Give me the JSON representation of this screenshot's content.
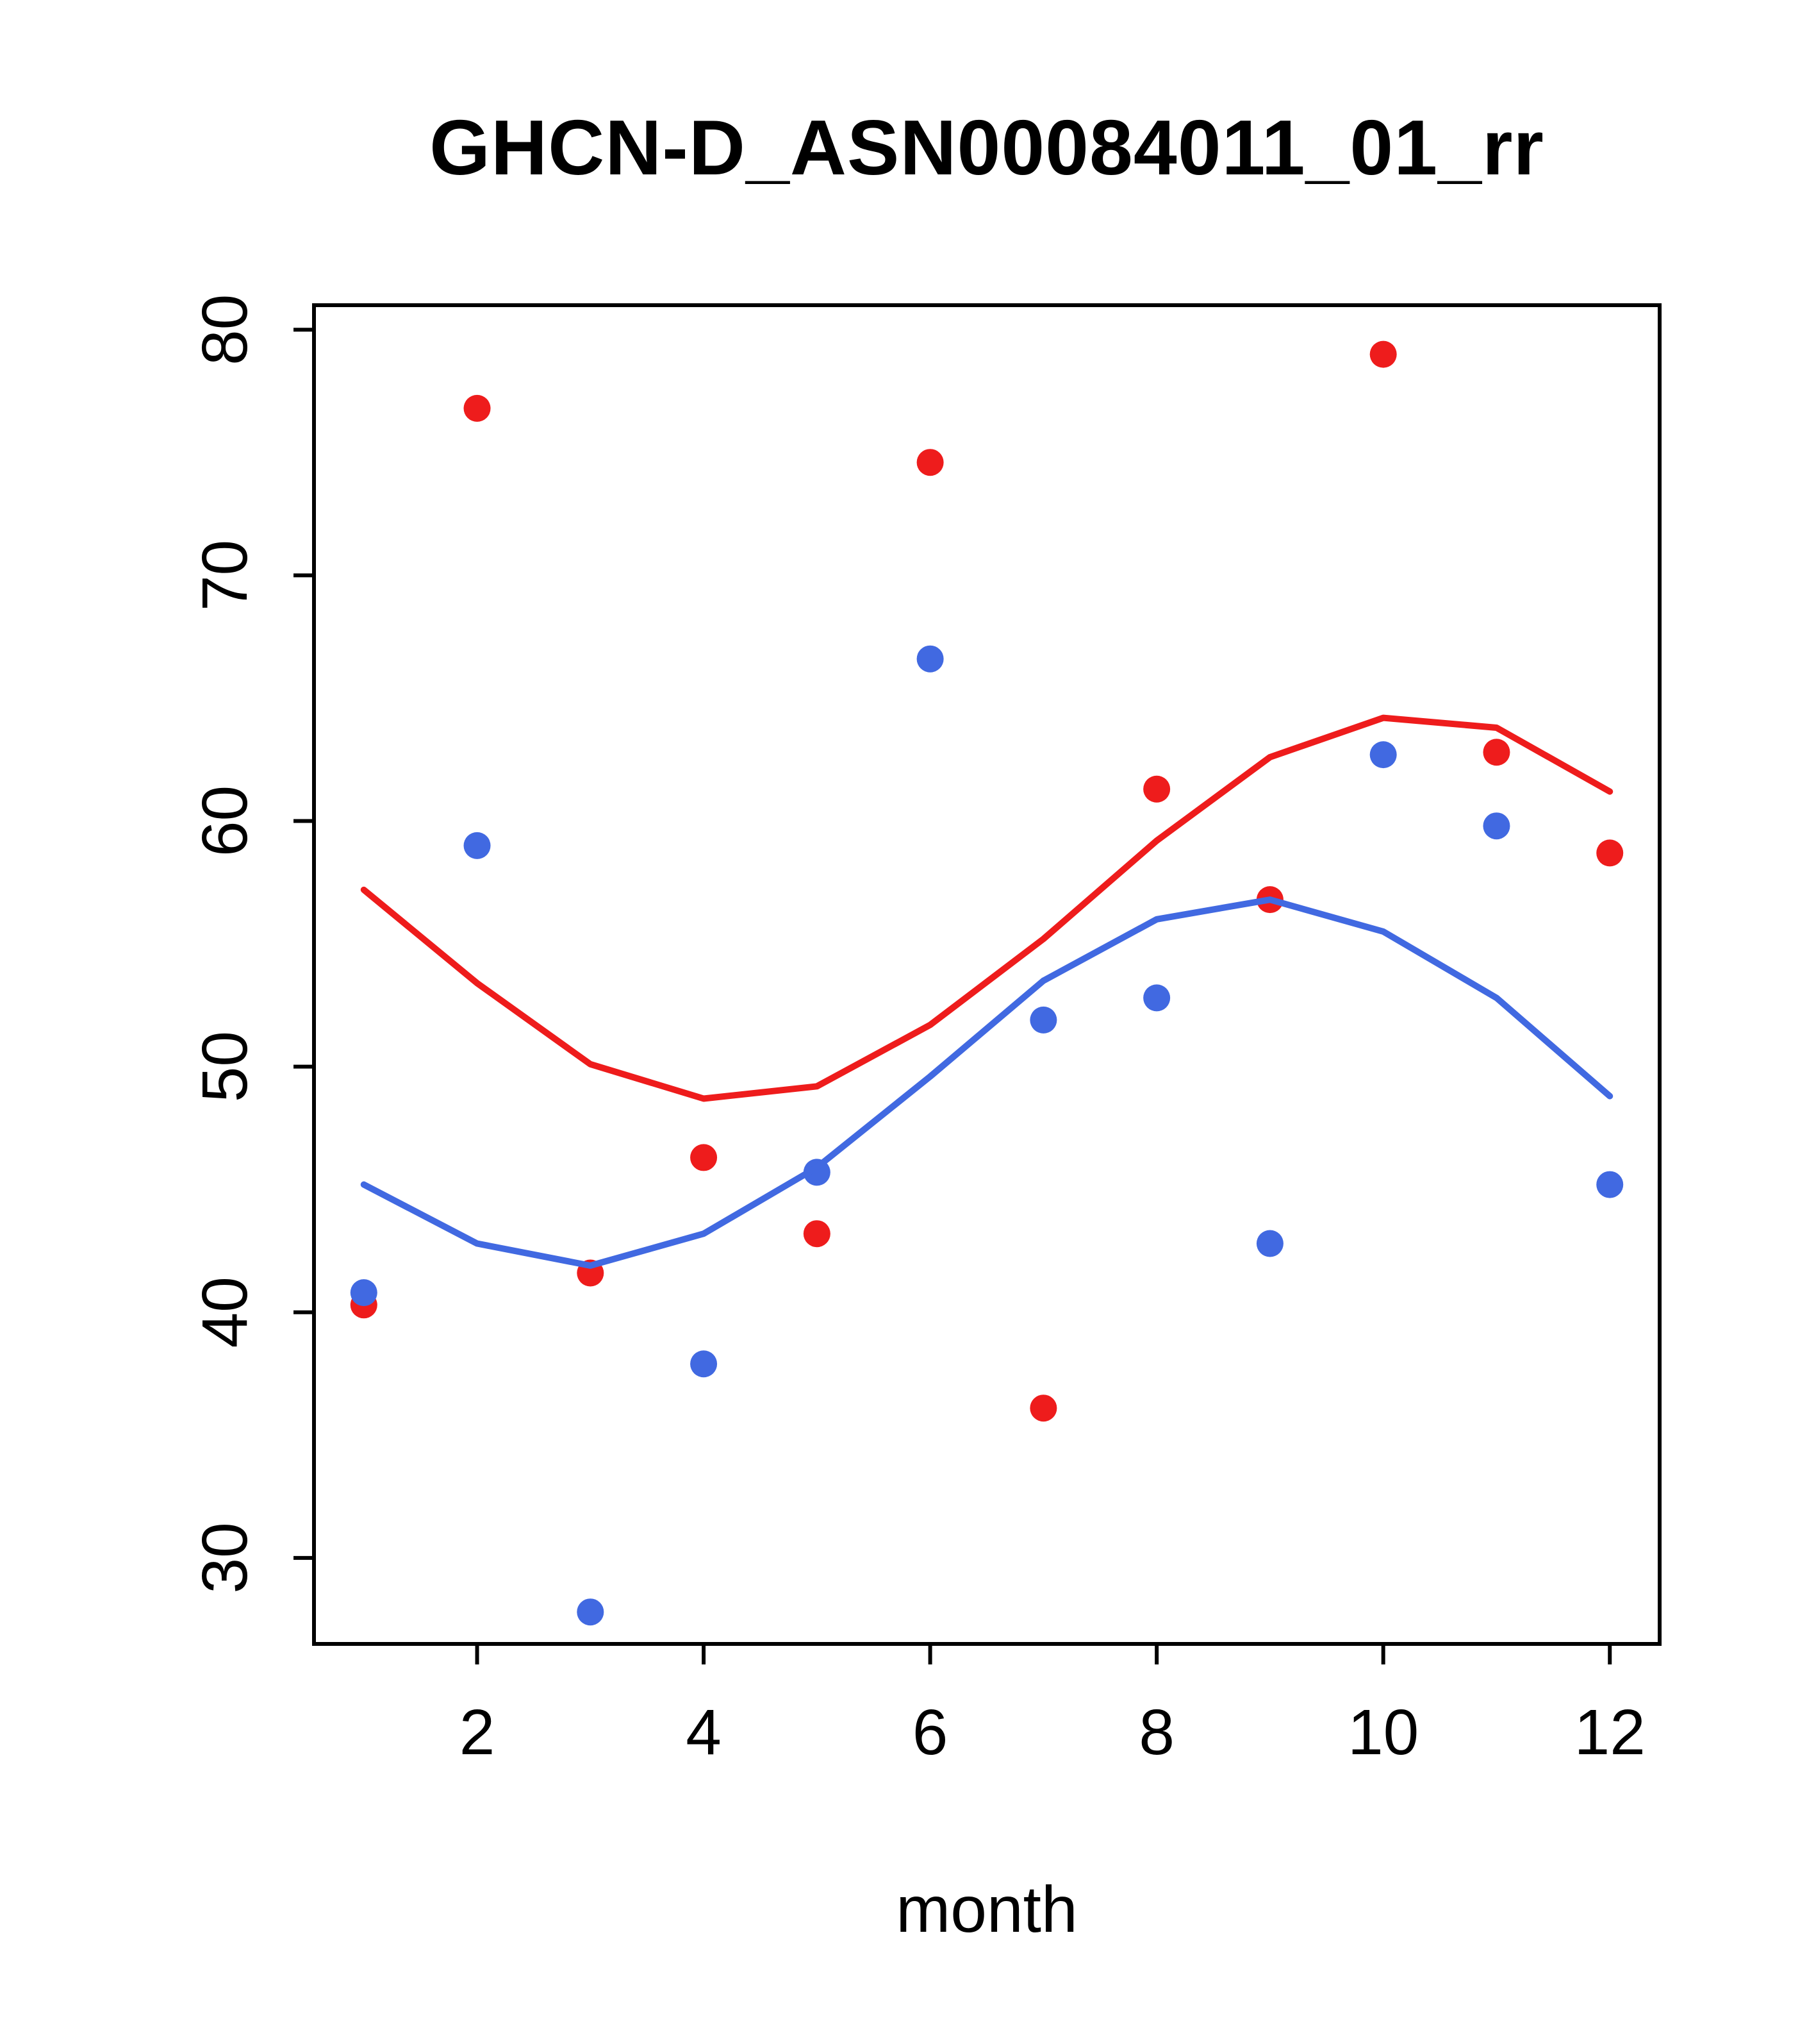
{
  "page": {
    "background": "#ffffff"
  },
  "chart_data": {
    "type": "scatter",
    "title": "GHCN-D_ASN00084011_01_rr",
    "xlabel": "month",
    "ylabel": "",
    "x": [
      1,
      2,
      3,
      4,
      5,
      6,
      7,
      8,
      9,
      10,
      11,
      12
    ],
    "xlim": [
      0.56,
      12.44
    ],
    "ylim": [
      26.5,
      81.0
    ],
    "xticks": [
      2,
      4,
      6,
      8,
      10,
      12
    ],
    "yticks": [
      30,
      40,
      50,
      60,
      70,
      80
    ],
    "grid": false,
    "legend": "none",
    "colors": {
      "red": "#ee1c1c",
      "blue": "#4169e1",
      "axis": "#000000"
    },
    "series": [
      {
        "name": "red-points",
        "kind": "scatter",
        "color_key": "red",
        "values": [
          40.3,
          76.8,
          41.6,
          46.3,
          43.2,
          74.6,
          36.1,
          61.3,
          56.8,
          79.0,
          62.8,
          58.7
        ]
      },
      {
        "name": "blue-points",
        "kind": "scatter",
        "color_key": "blue",
        "values": [
          40.8,
          59.0,
          27.8,
          37.9,
          45.7,
          66.6,
          51.9,
          52.8,
          42.8,
          62.7,
          59.8,
          45.2
        ]
      },
      {
        "name": "red-smooth-line",
        "kind": "line",
        "color_key": "red",
        "values": [
          57.2,
          53.4,
          50.1,
          48.7,
          49.2,
          51.7,
          55.2,
          59.2,
          62.6,
          64.2,
          63.8,
          61.2
        ]
      },
      {
        "name": "blue-smooth-line",
        "kind": "line",
        "color_key": "blue",
        "values": [
          45.2,
          42.8,
          41.9,
          43.2,
          45.9,
          49.6,
          53.5,
          56.0,
          56.8,
          55.5,
          52.8,
          48.8
        ]
      }
    ]
  }
}
